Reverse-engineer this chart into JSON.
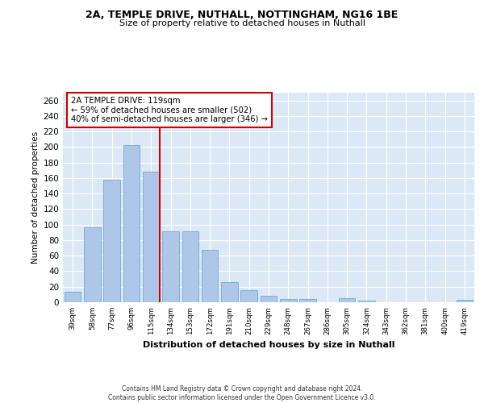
{
  "title1": "2A, TEMPLE DRIVE, NUTHALL, NOTTINGHAM, NG16 1BE",
  "title2": "Size of property relative to detached houses in Nuthall",
  "xlabel": "Distribution of detached houses by size in Nuthall",
  "ylabel": "Number of detached properties",
  "categories": [
    "39sqm",
    "58sqm",
    "77sqm",
    "96sqm",
    "115sqm",
    "134sqm",
    "153sqm",
    "172sqm",
    "191sqm",
    "210sqm",
    "229sqm",
    "248sqm",
    "267sqm",
    "286sqm",
    "305sqm",
    "324sqm",
    "343sqm",
    "362sqm",
    "381sqm",
    "400sqm",
    "419sqm"
  ],
  "values": [
    14,
    97,
    158,
    203,
    168,
    91,
    91,
    68,
    26,
    16,
    8,
    4,
    4,
    0,
    5,
    2,
    0,
    0,
    0,
    0,
    3
  ],
  "bar_color": "#aec6e8",
  "bar_edge_color": "#5a9fd4",
  "vline_x_idx": 4,
  "vline_color": "#cc0000",
  "annotation_text": "2A TEMPLE DRIVE: 119sqm\n← 59% of detached houses are smaller (502)\n40% of semi-detached houses are larger (346) →",
  "annotation_box_color": "#ffffff",
  "annotation_box_edge": "#cc0000",
  "ylim": [
    0,
    270
  ],
  "yticks": [
    0,
    20,
    40,
    60,
    80,
    100,
    120,
    140,
    160,
    180,
    200,
    220,
    240,
    260
  ],
  "background_color": "#dce8f5",
  "grid_color": "#ffffff",
  "footer1": "Contains HM Land Registry data © Crown copyright and database right 2024.",
  "footer2": "Contains public sector information licensed under the Open Government Licence v3.0."
}
